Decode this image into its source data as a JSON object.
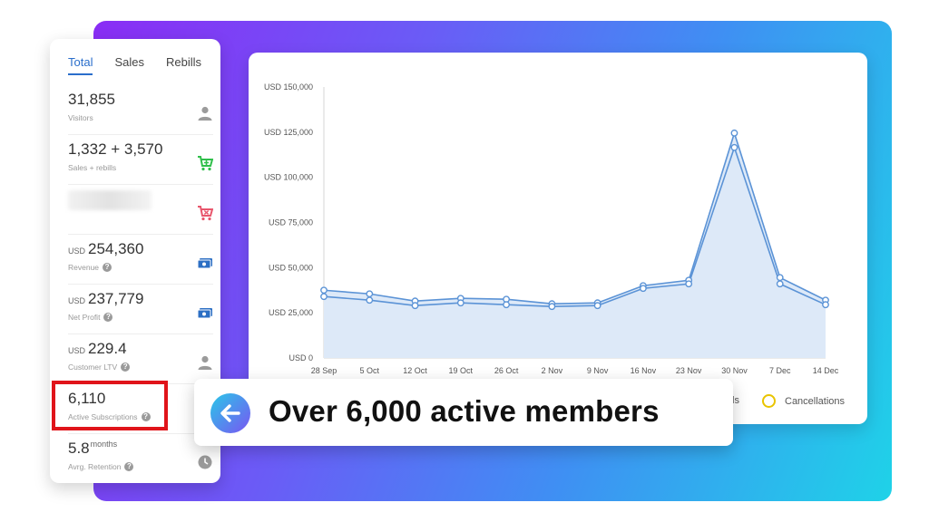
{
  "tabs": [
    {
      "label": "Total"
    },
    {
      "label": "Sales"
    },
    {
      "label": "Rebills"
    }
  ],
  "stats": {
    "visitors": {
      "value": "31,855",
      "label": "Visitors",
      "icon": "person-icon"
    },
    "sales": {
      "value": "1,332 + 3,570",
      "label": "Sales + rebills",
      "icon": "cart-icon"
    },
    "refunds": {
      "icon": "cart-remove-icon"
    },
    "revenue": {
      "currency": "USD",
      "value": "254,360",
      "label": "Revenue",
      "icon": "cash-icon"
    },
    "net_profit": {
      "currency": "USD",
      "value": "237,779",
      "label": "Net Profit",
      "icon": "cash-icon"
    },
    "ltv": {
      "currency": "USD",
      "value": "229.4",
      "label": "Customer LTV",
      "icon": "person-icon"
    },
    "active_subs": {
      "value": "6,110",
      "label": "Active Subscriptions"
    },
    "retention": {
      "value": "5.8",
      "unit": "months",
      "label": "Avrg. Retention",
      "icon": "clock-icon"
    }
  },
  "help_glyph": "?",
  "colors": {
    "accent": "#2a6ecb",
    "highlight": "#e0141a",
    "line": "#5b93d6",
    "area": "#dde9f8",
    "cancellations": "#e9c400",
    "cart_green": "#2fbf4a",
    "cart_red": "#e8566c",
    "cash_blue": "#2c6fc4"
  },
  "legend": {
    "partial_label": "ls",
    "cancellations": "Cancellations"
  },
  "callout": {
    "text": "Over 6,000 active members",
    "icon": "arrow-left-icon"
  },
  "chart_data": {
    "type": "line",
    "categories": [
      "28 Sep",
      "5 Oct",
      "12 Oct",
      "19 Oct",
      "26 Oct",
      "2 Nov",
      "9 Nov",
      "16 Nov",
      "23 Nov",
      "30 Nov",
      "7 Dec",
      "14 Dec"
    ],
    "y_ticks": [
      "USD 0",
      "USD 25,000",
      "USD 50,000",
      "USD 75,000",
      "USD 100,000",
      "USD 125,000",
      "USD 150,000"
    ],
    "ylim": [
      0,
      150000
    ],
    "grid": false,
    "series": [
      {
        "values": [
          37500,
          35500,
          31500,
          33000,
          32500,
          30000,
          30500,
          40000,
          43000,
          124500,
          44500,
          32000
        ]
      },
      {
        "values": [
          34000,
          32000,
          29000,
          30500,
          29500,
          28500,
          29000,
          38500,
          41000,
          116500,
          41000,
          29500
        ]
      }
    ]
  }
}
